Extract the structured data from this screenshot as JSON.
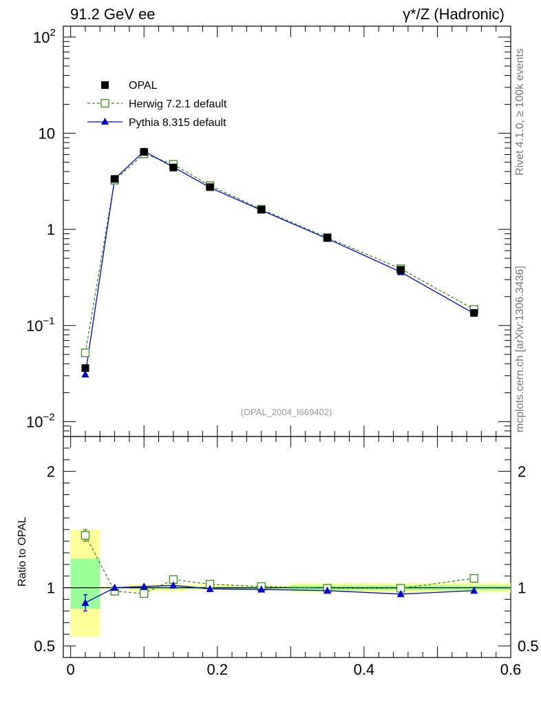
{
  "header": {
    "left_title": "91.2 GeV ee",
    "right_title": "γ*/Z (Hadronic)"
  },
  "side": {
    "rivet": "Rivet 4.1.0, ≥ 100k events",
    "mcplots": "mcplots.cern.ch [arXiv:1306.3436]"
  },
  "analysis_label": "(OPAL_2004_I669402)",
  "colors": {
    "data": "#000000",
    "herwig": "#3a8a1e",
    "pythia": "#0000cc",
    "band_yellow": "#ffff99",
    "band_green": "#99ff99"
  },
  "chart_data": [
    {
      "type": "line",
      "yscale": "log",
      "xlim": [
        -0.01,
        0.6
      ],
      "ylim": [
        0.007,
        130
      ],
      "y_ticks": [
        {
          "v": 0.01,
          "base": "10",
          "exp": "−2"
        },
        {
          "v": 0.1,
          "base": "10",
          "exp": "−1"
        },
        {
          "v": 1,
          "base": "1",
          "exp": ""
        },
        {
          "v": 10,
          "base": "10",
          "exp": ""
        },
        {
          "v": 100,
          "base": "10",
          "exp": "2"
        }
      ],
      "x": [
        0.02,
        0.06,
        0.1,
        0.14,
        0.19,
        0.26,
        0.35,
        0.45,
        0.55
      ],
      "series": [
        {
          "name": "OPAL",
          "style": "data",
          "values": [
            0.036,
            3.35,
            6.4,
            4.4,
            2.75,
            1.6,
            0.82,
            0.38,
            0.135
          ]
        },
        {
          "name": "Herwig 7.2.1 default",
          "style": "herwig",
          "values": [
            0.052,
            3.25,
            6.1,
            4.75,
            2.85,
            1.62,
            0.82,
            0.39,
            0.147
          ]
        },
        {
          "name": "Pythia 8.315 default",
          "style": "pythia",
          "values": [
            0.031,
            3.35,
            6.5,
            4.45,
            2.72,
            1.58,
            0.8,
            0.36,
            0.133
          ]
        }
      ]
    },
    {
      "type": "line",
      "ylabel": "Ratio to OPAL",
      "xlim": [
        -0.01,
        0.6
      ],
      "ylim": [
        0.4,
        2.3
      ],
      "y_ticks": [
        {
          "v": 0.5,
          "label": "0.5"
        },
        {
          "v": 1,
          "label": "1"
        },
        {
          "v": 2,
          "label": "2"
        }
      ],
      "x_ticks": [
        {
          "v": 0,
          "label": "0"
        },
        {
          "v": 0.2,
          "label": "0.2"
        },
        {
          "v": 0.4,
          "label": "0.4"
        },
        {
          "v": 0.6,
          "label": "0.6"
        }
      ],
      "bins": [
        {
          "lo": 0.0,
          "hi": 0.04,
          "yellow": [
            0.58,
            1.5
          ],
          "green": [
            0.82,
            1.25
          ]
        },
        {
          "lo": 0.04,
          "hi": 0.08,
          "yellow": [
            0.99,
            1.01
          ],
          "green": [
            0.995,
            1.005
          ]
        },
        {
          "lo": 0.08,
          "hi": 0.12,
          "yellow": [
            0.97,
            1.03
          ],
          "green": [
            0.99,
            1.01
          ]
        },
        {
          "lo": 0.12,
          "hi": 0.16,
          "yellow": [
            0.97,
            1.03
          ],
          "green": [
            0.99,
            1.01
          ]
        },
        {
          "lo": 0.16,
          "hi": 0.22,
          "yellow": [
            0.98,
            1.03
          ],
          "green": [
            0.99,
            1.01
          ]
        },
        {
          "lo": 0.22,
          "hi": 0.3,
          "yellow": [
            0.98,
            1.02
          ],
          "green": [
            0.99,
            1.01
          ]
        },
        {
          "lo": 0.3,
          "hi": 0.4,
          "yellow": [
            0.96,
            1.04
          ],
          "green": [
            0.98,
            1.02
          ]
        },
        {
          "lo": 0.4,
          "hi": 0.5,
          "yellow": [
            0.96,
            1.04
          ],
          "green": [
            0.98,
            1.02
          ]
        },
        {
          "lo": 0.5,
          "hi": 0.6,
          "yellow": [
            0.96,
            1.04
          ],
          "green": [
            0.98,
            1.02
          ]
        }
      ],
      "x": [
        0.02,
        0.06,
        0.1,
        0.14,
        0.19,
        0.26,
        0.35,
        0.45,
        0.55
      ],
      "series": [
        {
          "name": "Herwig 7.2.1 default",
          "style": "herwig",
          "values": [
            1.45,
            0.97,
            0.95,
            1.07,
            1.03,
            1.01,
            0.995,
            0.995,
            1.08
          ],
          "first_err": 0.05
        },
        {
          "name": "Pythia 8.315 default",
          "style": "pythia",
          "values": [
            0.87,
            1.0,
            1.01,
            1.02,
            0.99,
            0.985,
            0.975,
            0.945,
            0.975
          ],
          "first_err": 0.07
        }
      ]
    }
  ]
}
